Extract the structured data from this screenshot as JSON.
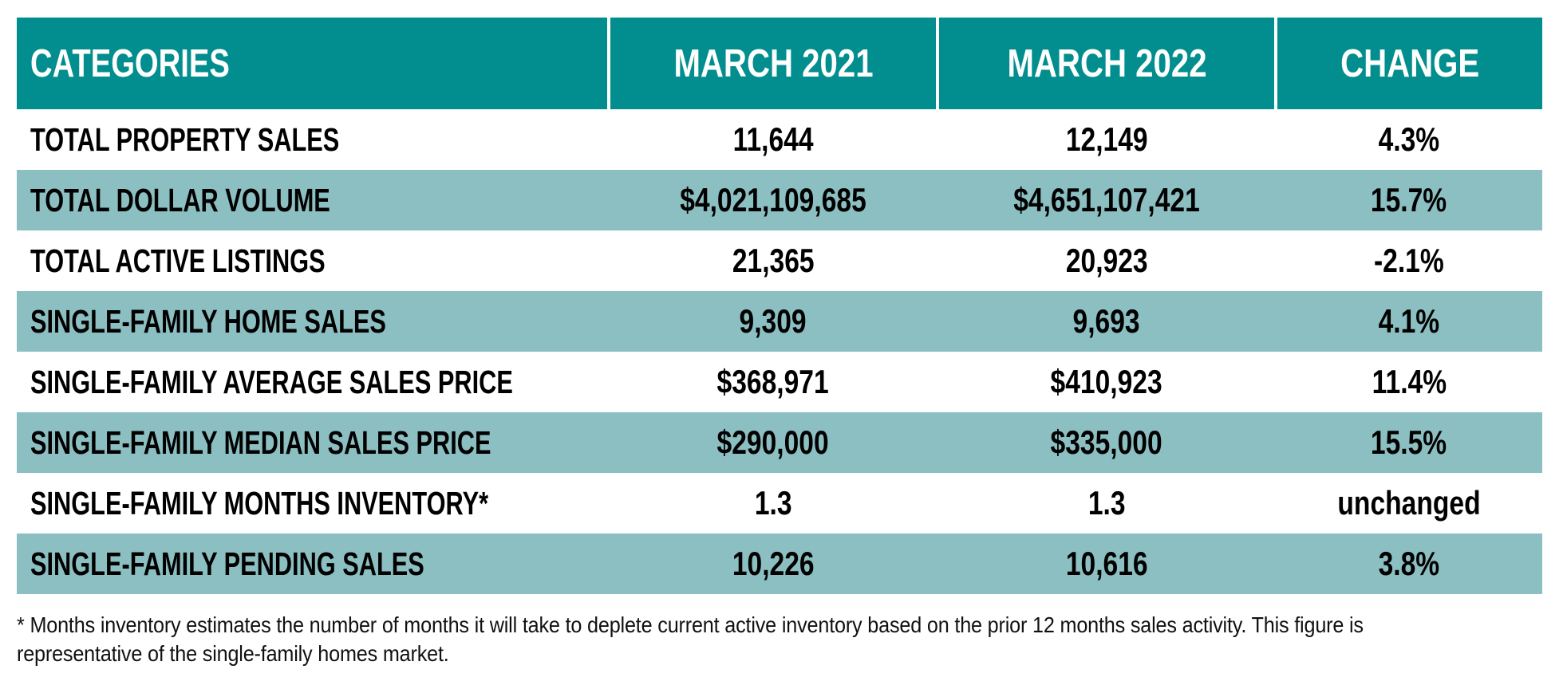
{
  "theme": {
    "header_bg": "#028E8E",
    "band_bg": "#8CBFC2",
    "header_text": "#FFFFFF",
    "body_text": "#000000"
  },
  "table": {
    "columns": [
      "CATEGORIES",
      "MARCH 2021",
      "MARCH 2022",
      "CHANGE"
    ],
    "rows": [
      {
        "category": "TOTAL PROPERTY SALES",
        "march_2021": "11,644",
        "march_2022": "12,149",
        "change": "4.3%"
      },
      {
        "category": "TOTAL DOLLAR VOLUME",
        "march_2021": "$4,021,109,685",
        "march_2022": "$4,651,107,421",
        "change": "15.7%"
      },
      {
        "category": "TOTAL ACTIVE LISTINGS",
        "march_2021": "21,365",
        "march_2022": "20,923",
        "change": "-2.1%"
      },
      {
        "category": "SINGLE-FAMILY HOME SALES",
        "march_2021": "9,309",
        "march_2022": "9,693",
        "change": "4.1%"
      },
      {
        "category": "SINGLE-FAMILY AVERAGE SALES PRICE",
        "march_2021": "$368,971",
        "march_2022": "$410,923",
        "change": "11.4%"
      },
      {
        "category": "SINGLE-FAMILY MEDIAN SALES PRICE",
        "march_2021": "$290,000",
        "march_2022": "$335,000",
        "change": "15.5%"
      },
      {
        "category": "SINGLE-FAMILY MONTHS INVENTORY*",
        "march_2021": "1.3",
        "march_2022": "1.3",
        "change": "unchanged"
      },
      {
        "category": "SINGLE-FAMILY PENDING SALES",
        "march_2021": "10,226",
        "march_2022": "10,616",
        "change": "3.8%"
      }
    ]
  },
  "chart_data": {
    "type": "table",
    "title": "",
    "categories": [
      "TOTAL PROPERTY SALES",
      "TOTAL DOLLAR VOLUME",
      "TOTAL ACTIVE LISTINGS",
      "SINGLE-FAMILY HOME SALES",
      "SINGLE-FAMILY AVERAGE SALES PRICE",
      "SINGLE-FAMILY MEDIAN SALES PRICE",
      "SINGLE-FAMILY MONTHS INVENTORY*",
      "SINGLE-FAMILY PENDING SALES"
    ],
    "series": [
      {
        "name": "MARCH 2021",
        "values": [
          11644,
          4021109685,
          21365,
          9309,
          368971,
          290000,
          1.3,
          10226
        ]
      },
      {
        "name": "MARCH 2022",
        "values": [
          12149,
          4651107421,
          20923,
          9693,
          410923,
          335000,
          1.3,
          10616
        ]
      },
      {
        "name": "CHANGE",
        "values": [
          "4.3%",
          "15.7%",
          "-2.1%",
          "4.1%",
          "11.4%",
          "15.5%",
          "unchanged",
          "3.8%"
        ]
      }
    ]
  },
  "footnote": {
    "lines": [
      "* Months inventory estimates the number of months it will take to deplete current active inventory based on the prior 12 months sales activity. This figure is",
      "representative of the single-family homes market."
    ]
  }
}
